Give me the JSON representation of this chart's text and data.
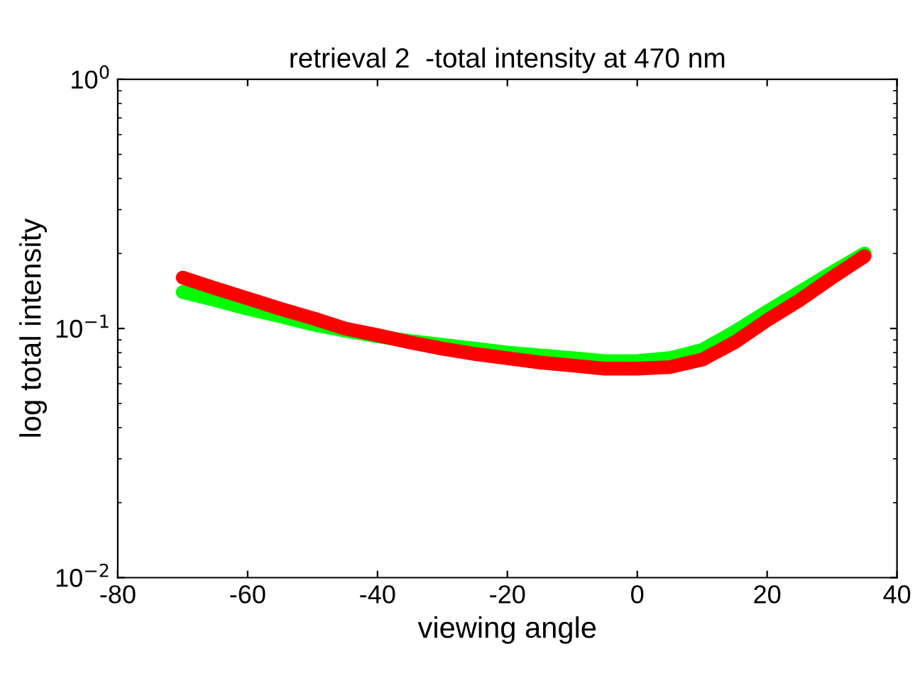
{
  "chart_data": {
    "type": "line",
    "title": "retrieval 2  -total intensity at 470 nm",
    "xlabel": "viewing angle",
    "ylabel": "log total intensity",
    "log": "y",
    "xlim": [
      -80,
      40
    ],
    "xticks": [
      -80,
      -60,
      -40,
      -20,
      0,
      20,
      40
    ],
    "ylim": [
      0.01,
      1
    ],
    "yticks": [
      {
        "value": 0.01,
        "label": "10$^{−2}$"
      },
      {
        "value": 0.1,
        "label": "10$^{−1}$"
      },
      {
        "value": 1,
        "label": "10$^{0}$"
      }
    ],
    "grid": false,
    "legend": false,
    "marker": "none",
    "line_style": "solid",
    "series": [
      {
        "color": "#00ff00",
        "x": [
          -70,
          -65,
          -60,
          -55,
          -50,
          -45,
          -40,
          -35,
          -30,
          -25,
          -20,
          -15,
          -10,
          -5,
          0,
          5,
          10,
          15,
          20,
          25,
          30,
          35
        ],
        "values": [
          0.14,
          0.13,
          0.12,
          0.112,
          0.104,
          0.098,
          0.093,
          0.089,
          0.086,
          0.083,
          0.08,
          0.078,
          0.076,
          0.074,
          0.074,
          0.076,
          0.082,
          0.097,
          0.117,
          0.14,
          0.168,
          0.2
        ]
      },
      {
        "color": "#ff0000",
        "x": [
          -70,
          -65,
          -60,
          -55,
          -50,
          -45,
          -40,
          -35,
          -30,
          -25,
          -20,
          -15,
          -10,
          -5,
          0,
          5,
          10,
          15,
          20,
          25,
          30,
          35
        ],
        "values": [
          0.16,
          0.145,
          0.132,
          0.12,
          0.11,
          0.1,
          0.094,
          0.088,
          0.083,
          0.079,
          0.076,
          0.073,
          0.071,
          0.069,
          0.069,
          0.07,
          0.075,
          0.088,
          0.108,
          0.13,
          0.16,
          0.195
        ]
      }
    ]
  }
}
